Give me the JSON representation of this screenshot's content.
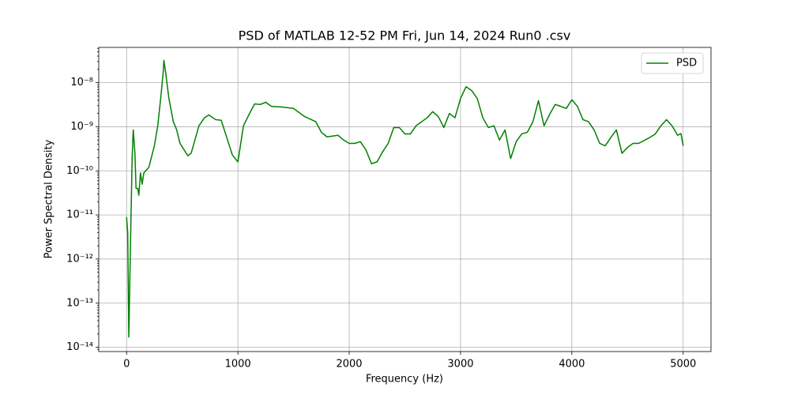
{
  "chart_data": {
    "type": "line",
    "title": "PSD of MATLAB 12-52 PM Fri, Jun 14, 2024 Run0 .csv",
    "x_label": "Frequency (Hz)",
    "y_label": "Power Spectral Density",
    "y_scale": "log",
    "grid": true,
    "legend_position": "upper right",
    "xlim": [
      -250,
      5250
    ],
    "ylim": [
      8e-15,
      6.3e-08
    ],
    "xticks": [
      0,
      1000,
      2000,
      3000,
      4000,
      5000
    ],
    "yticks": [
      {
        "value": 1e-14,
        "label": "10⁻¹⁴"
      },
      {
        "value": 1e-13,
        "label": "10⁻¹³"
      },
      {
        "value": 1e-12,
        "label": "10⁻¹²"
      },
      {
        "value": 1e-11,
        "label": "10⁻¹¹"
      },
      {
        "value": 1e-10,
        "label": "10⁻¹⁰"
      },
      {
        "value": 1e-09,
        "label": "10⁻⁹"
      },
      {
        "value": 1e-08,
        "label": "10⁻⁸"
      }
    ],
    "x": [
      0,
      10,
      20,
      35,
      50,
      60,
      75,
      85,
      100,
      110,
      125,
      140,
      155,
      200,
      250,
      280,
      310,
      330,
      335,
      350,
      380,
      420,
      450,
      480,
      550,
      580,
      650,
      700,
      740,
      800,
      850,
      900,
      950,
      1000,
      1050,
      1100,
      1150,
      1200,
      1250,
      1300,
      1400,
      1500,
      1600,
      1700,
      1750,
      1800,
      1900,
      1950,
      2000,
      2050,
      2100,
      2150,
      2200,
      2250,
      2300,
      2350,
      2400,
      2450,
      2500,
      2550,
      2600,
      2700,
      2750,
      2800,
      2850,
      2900,
      2950,
      3000,
      3050,
      3100,
      3150,
      3200,
      3250,
      3300,
      3350,
      3400,
      3450,
      3500,
      3550,
      3600,
      3650,
      3700,
      3750,
      3800,
      3850,
      3900,
      3950,
      4000,
      4050,
      4100,
      4150,
      4200,
      4250,
      4300,
      4350,
      4400,
      4450,
      4500,
      4550,
      4600,
      4700,
      4750,
      4800,
      4850,
      4900,
      4950,
      4980,
      5000
    ],
    "series": [
      {
        "name": "PSD",
        "color": "#008000",
        "values": [
          9e-12,
          4e-12,
          1.7e-14,
          2e-12,
          2e-10,
          8.5e-10,
          2.5e-10,
          4e-11,
          4e-11,
          2.8e-11,
          9e-11,
          5e-11,
          9e-11,
          1.2e-10,
          3.7e-10,
          1.05e-09,
          5.4e-09,
          1.85e-08,
          3.2e-08,
          1.8e-08,
          4.4e-09,
          1.3e-09,
          8.5e-10,
          4.2e-10,
          2.2e-10,
          2.5e-10,
          1.05e-09,
          1.6e-09,
          1.85e-09,
          1.45e-09,
          1.4e-09,
          5.7e-10,
          2.3e-10,
          1.6e-10,
          1.05e-09,
          1.9e-09,
          3.3e-09,
          3.2e-09,
          3.6e-09,
          2.9e-09,
          2.8e-09,
          2.6e-09,
          1.7e-09,
          1.3e-09,
          7.5e-10,
          5.9e-10,
          6.4e-10,
          5e-10,
          4.2e-10,
          4.2e-10,
          4.6e-10,
          3e-10,
          1.45e-10,
          1.6e-10,
          2.7e-10,
          4.2e-10,
          9.6e-10,
          9.6e-10,
          6.9e-10,
          6.9e-10,
          1.05e-09,
          1.6e-09,
          2.2e-09,
          1.7e-09,
          9.6e-10,
          2e-09,
          1.6e-09,
          4.4e-09,
          8.1e-09,
          6.6e-09,
          4.4e-09,
          1.6e-09,
          9.6e-10,
          1.05e-09,
          5e-10,
          8.5e-10,
          1.9e-10,
          4.6e-10,
          6.9e-10,
          7.5e-10,
          1.3e-09,
          3.9e-09,
          1.05e-09,
          1.9e-09,
          3.2e-09,
          2.9e-09,
          2.6e-09,
          4.1e-09,
          2.9e-09,
          1.45e-09,
          1.3e-09,
          8.5e-10,
          4.2e-10,
          3.7e-10,
          5.7e-10,
          8.5e-10,
          2.5e-10,
          3.4e-10,
          4.2e-10,
          4.2e-10,
          5.7e-10,
          6.9e-10,
          1.05e-09,
          1.45e-09,
          1.05e-09,
          6.4e-10,
          7e-10,
          3.7e-10
        ]
      }
    ]
  }
}
